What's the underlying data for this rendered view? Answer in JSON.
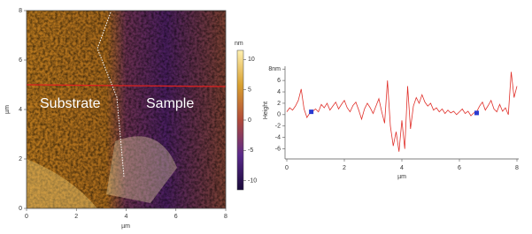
{
  "chart_data": [
    {
      "type": "image",
      "xlabel": "µm",
      "ylabel": "µm",
      "xlim": [
        0,
        8
      ],
      "ylim": [
        0,
        8
      ],
      "xticks": [
        0,
        2,
        4,
        6,
        8
      ],
      "yticks": [
        0,
        2,
        4,
        6,
        8
      ],
      "colorbar_label": "nm",
      "clim": [
        -11.5,
        11.5
      ],
      "cticks": [
        10,
        5,
        0,
        -5,
        -10
      ],
      "colormap": [
        "#1a0a3a",
        "#5a2a8a",
        "#b04a3a",
        "#d8a030",
        "#fff0b0"
      ],
      "annotations": [
        "Substrate",
        "Sample"
      ]
    },
    {
      "type": "line",
      "xlabel": "µm",
      "ylabel": "Height",
      "xlim": [
        0,
        8
      ],
      "ylim": [
        -7,
        8.5
      ],
      "xticks": [
        0,
        2,
        4,
        6,
        8
      ],
      "yticks": [
        {
          "value": 8,
          "label": "8nm"
        },
        6,
        4,
        2,
        0,
        -2,
        -4,
        -6
      ],
      "x": [
        0,
        0.1,
        0.2,
        0.3,
        0.4,
        0.5,
        0.6,
        0.7,
        0.8,
        0.9,
        1,
        1.1,
        1.2,
        1.3,
        1.4,
        1.5,
        1.6,
        1.7,
        1.8,
        1.9,
        2,
        2.1,
        2.2,
        2.3,
        2.4,
        2.5,
        2.6,
        2.7,
        2.8,
        2.9,
        3,
        3.1,
        3.2,
        3.3,
        3.4,
        3.5,
        3.6,
        3.7,
        3.8,
        3.9,
        4,
        4.1,
        4.2,
        4.3,
        4.4,
        4.5,
        4.6,
        4.7,
        4.8,
        4.9,
        5,
        5.1,
        5.2,
        5.3,
        5.4,
        5.5,
        5.6,
        5.7,
        5.8,
        5.9,
        6,
        6.1,
        6.2,
        6.3,
        6.4,
        6.5,
        6.6,
        6.7,
        6.8,
        6.9,
        7,
        7.1,
        7.2,
        7.3,
        7.4,
        7.5,
        7.6,
        7.7,
        7.8,
        7.9,
        8
      ],
      "series": [
        {
          "color": "#e0302a",
          "values": [
            0.5,
            1.2,
            0.8,
            1.5,
            2.5,
            4.5,
            1,
            -0.5,
            0.3,
            0.6,
            1,
            0.5,
            1.8,
            1.2,
            2,
            0.8,
            1.5,
            2.2,
            1,
            1.8,
            2.5,
            1.2,
            0.5,
            1.6,
            2.2,
            0.8,
            -0.8,
            1,
            2,
            1.2,
            0.2,
            1.5,
            2.8,
            0.5,
            -1.5,
            6,
            -2,
            -5.5,
            -3,
            -6.5,
            -1,
            -6,
            5,
            -2.5,
            1.5,
            3,
            2,
            3.5,
            2.2,
            1.5,
            2,
            0.8,
            1.2,
            0.5,
            1,
            0.2,
            0.8,
            0.3,
            0.6,
            0,
            0.5,
            1,
            0.2,
            0.6,
            -0.2,
            0.3,
            0.5,
            1.5,
            2.2,
            0.8,
            1.6,
            2.5,
            1,
            0.5,
            1.8,
            0.6,
            1.2,
            0,
            7.5,
            3,
            5
          ]
        }
      ],
      "cursors": {
        "color": "#2a3ad0",
        "x": [
          0.85,
          6.6
        ],
        "y": [
          0.5,
          0.3
        ]
      }
    }
  ]
}
